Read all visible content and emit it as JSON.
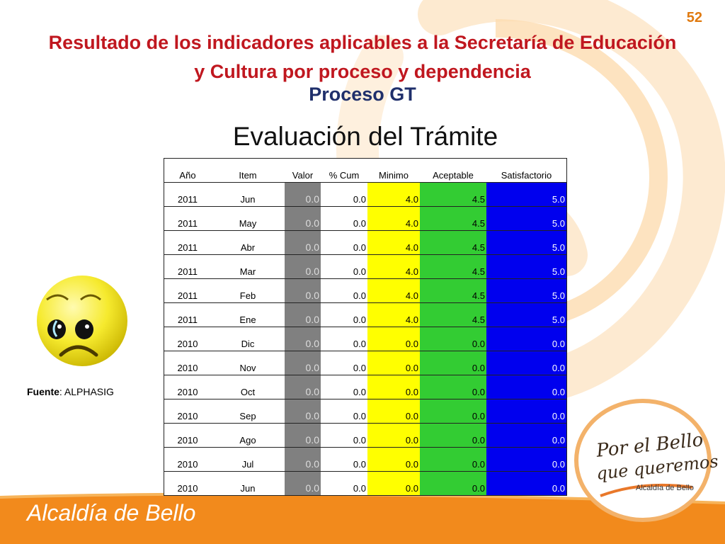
{
  "page_number": "52",
  "title": "Resultado de los indicadores aplicables a la Secretaría de Educación y Cultura por proceso y dependencia",
  "subtitle": "Proceso GT",
  "heading": "Evaluación del Trámite",
  "table": {
    "headers": [
      "Año",
      "Item",
      "Valor",
      "% Cum",
      "Minimo",
      "Aceptable",
      "Satisfactorio"
    ],
    "rows": [
      [
        "2011",
        "Jun",
        "0.0",
        "0.0",
        "4.0",
        "4.5",
        "5.0"
      ],
      [
        "2011",
        "May",
        "0.0",
        "0.0",
        "4.0",
        "4.5",
        "5.0"
      ],
      [
        "2011",
        "Abr",
        "0.0",
        "0.0",
        "4.0",
        "4.5",
        "5.0"
      ],
      [
        "2011",
        "Mar",
        "0.0",
        "0.0",
        "4.0",
        "4.5",
        "5.0"
      ],
      [
        "2011",
        "Feb",
        "0.0",
        "0.0",
        "4.0",
        "4.5",
        "5.0"
      ],
      [
        "2011",
        "Ene",
        "0.0",
        "0.0",
        "4.0",
        "4.5",
        "5.0"
      ],
      [
        "2010",
        "Dic",
        "0.0",
        "0.0",
        "0.0",
        "0.0",
        "0.0"
      ],
      [
        "2010",
        "Nov",
        "0.0",
        "0.0",
        "0.0",
        "0.0",
        "0.0"
      ],
      [
        "2010",
        "Oct",
        "0.0",
        "0.0",
        "0.0",
        "0.0",
        "0.0"
      ],
      [
        "2010",
        "Sep",
        "0.0",
        "0.0",
        "0.0",
        "0.0",
        "0.0"
      ],
      [
        "2010",
        "Ago",
        "0.0",
        "0.0",
        "0.0",
        "0.0",
        "0.0"
      ],
      [
        "2010",
        "Jul",
        "0.0",
        "0.0",
        "0.0",
        "0.0",
        "0.0"
      ],
      [
        "2010",
        "Jun",
        "0.0",
        "0.0",
        "0.0",
        "0.0",
        "0.0"
      ]
    ]
  },
  "source": {
    "label": "Fuente",
    "value": ": ALPHASIG"
  },
  "logo": {
    "line1": "Por el Bello",
    "line2": "que queremos",
    "line3": "Alcaldía de Bello"
  },
  "footer": {
    "text": "Alcaldía de Bello"
  },
  "icons": {
    "smiley": "sad-face-icon"
  },
  "colors": {
    "title": "#c0171f",
    "subtitle": "#1f2f6b",
    "minimo": "#ffff00",
    "aceptable": "#33cc33",
    "satisfactorio": "#0000ee",
    "valor": "#808080",
    "footer": "#f28a1c"
  }
}
